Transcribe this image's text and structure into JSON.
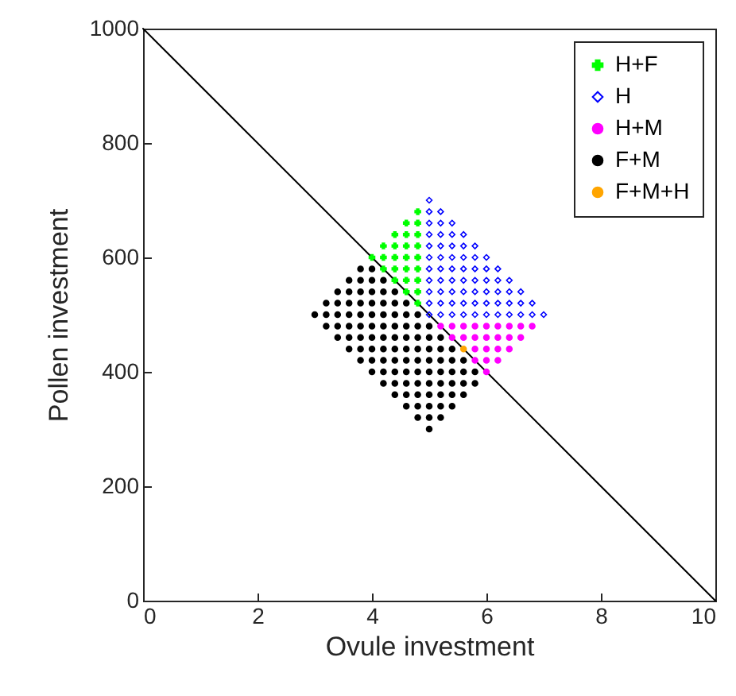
{
  "chart_data": {
    "type": "scatter",
    "xlabel": "Ovule investment",
    "ylabel": "Pollen investment",
    "xlim": [
      0,
      10
    ],
    "ylim": [
      0,
      1000
    ],
    "xticks": [
      0,
      2,
      4,
      6,
      8,
      10
    ],
    "yticks": [
      0,
      200,
      400,
      600,
      800,
      1000
    ],
    "grid": false,
    "legend": "top right",
    "series": [
      {
        "type": "line",
        "color": "#000000",
        "line_style": "solid",
        "x": [
          0,
          10
        ],
        "values": [
          1000,
          0
        ]
      },
      {
        "name": "H+F",
        "color": "#00ff00",
        "marker": "cross",
        "x": [
          4.8,
          4.8,
          4.8,
          4.8,
          4.8,
          4.8,
          4.8,
          4.8,
          4.8,
          4.6,
          4.6,
          4.6,
          4.6,
          4.6,
          4.6,
          4.6,
          4.4,
          4.4,
          4.4,
          4.4,
          4.4,
          4.2,
          4.2,
          4.2,
          4
        ],
        "values": [
          520,
          540,
          560,
          580,
          600,
          620,
          640,
          660,
          680,
          540,
          560,
          580,
          600,
          620,
          640,
          660,
          560,
          580,
          600,
          620,
          640,
          580,
          600,
          620,
          600
        ]
      },
      {
        "name": "H",
        "color": "#0000ff",
        "marker": "diamond",
        "x": [
          5,
          5,
          5,
          5,
          5,
          5,
          5,
          5,
          5,
          5,
          5,
          5.2,
          5.2,
          5.2,
          5.2,
          5.2,
          5.2,
          5.2,
          5.2,
          5.2,
          5.2,
          5.4,
          5.4,
          5.4,
          5.4,
          5.4,
          5.4,
          5.4,
          5.4,
          5.4,
          5.6,
          5.6,
          5.6,
          5.6,
          5.6,
          5.6,
          5.6,
          5.6,
          5.8,
          5.8,
          5.8,
          5.8,
          5.8,
          5.8,
          5.8,
          6,
          6,
          6,
          6,
          6,
          6,
          6.2,
          6.2,
          6.2,
          6.2,
          6.2,
          6.4,
          6.4,
          6.4,
          6.4,
          6.6,
          6.6,
          6.6,
          6.8,
          6.8,
          7
        ],
        "values": [
          500,
          520,
          540,
          560,
          580,
          600,
          620,
          640,
          660,
          680,
          700,
          500,
          520,
          540,
          560,
          580,
          600,
          620,
          640,
          660,
          680,
          500,
          520,
          540,
          560,
          580,
          600,
          620,
          640,
          660,
          500,
          520,
          540,
          560,
          580,
          600,
          620,
          640,
          500,
          520,
          540,
          560,
          580,
          600,
          620,
          500,
          520,
          540,
          560,
          580,
          600,
          500,
          520,
          540,
          560,
          580,
          500,
          520,
          540,
          560,
          500,
          520,
          540,
          500,
          520,
          500
        ]
      },
      {
        "name": "H+M",
        "color": "#ff00ff",
        "marker": "circle",
        "x": [
          5.2,
          5.4,
          5.6,
          5.8,
          6,
          6.2,
          6.4,
          6.6,
          6.8,
          5.4,
          5.6,
          5.8,
          6,
          6.2,
          6.4,
          6.6,
          5.8,
          6,
          6.2,
          6.4,
          5.8,
          6,
          6.2,
          6
        ],
        "values": [
          480,
          480,
          480,
          480,
          480,
          480,
          480,
          480,
          480,
          460,
          460,
          460,
          460,
          460,
          460,
          460,
          440,
          440,
          440,
          440,
          420,
          420,
          420,
          400
        ]
      },
      {
        "name": "F+M",
        "color": "#000000",
        "marker": "circle",
        "x": [
          3.8,
          4,
          3.6,
          3.8,
          4,
          4.2,
          3.4,
          3.6,
          3.8,
          4,
          4.2,
          4.4,
          3.2,
          3.4,
          3.6,
          3.8,
          4,
          4.2,
          4.4,
          4.6,
          3,
          3.2,
          3.4,
          3.6,
          3.8,
          4,
          4.2,
          4.4,
          4.6,
          4.8,
          3.2,
          3.4,
          3.6,
          3.8,
          4,
          4.2,
          4.4,
          4.6,
          4.8,
          5,
          3.4,
          3.6,
          3.8,
          4,
          4.2,
          4.4,
          4.6,
          4.8,
          5,
          5.2,
          3.6,
          3.8,
          4,
          4.2,
          4.4,
          4.6,
          4.8,
          5,
          5.2,
          5.4,
          3.8,
          4,
          4.2,
          4.4,
          4.6,
          4.8,
          5,
          5.2,
          5.4,
          5.6,
          4,
          4.2,
          4.4,
          4.6,
          4.8,
          5,
          5.2,
          5.4,
          5.6,
          5.8,
          4.2,
          4.4,
          4.6,
          4.8,
          5,
          5.2,
          5.4,
          5.6,
          5.8,
          4.4,
          4.6,
          4.8,
          5,
          5.2,
          5.4,
          5.6,
          4.6,
          4.8,
          5,
          5.2,
          5.4,
          4.8,
          5,
          5.2,
          5
        ],
        "values": [
          580,
          580,
          560,
          560,
          560,
          560,
          540,
          540,
          540,
          540,
          540,
          540,
          520,
          520,
          520,
          520,
          520,
          520,
          520,
          520,
          500,
          500,
          500,
          500,
          500,
          500,
          500,
          500,
          500,
          500,
          480,
          480,
          480,
          480,
          480,
          480,
          480,
          480,
          480,
          480,
          460,
          460,
          460,
          460,
          460,
          460,
          460,
          460,
          460,
          460,
          440,
          440,
          440,
          440,
          440,
          440,
          440,
          440,
          440,
          440,
          420,
          420,
          420,
          420,
          420,
          420,
          420,
          420,
          420,
          420,
          400,
          400,
          400,
          400,
          400,
          400,
          400,
          400,
          400,
          400,
          380,
          380,
          380,
          380,
          380,
          380,
          380,
          380,
          380,
          360,
          360,
          360,
          360,
          360,
          360,
          360,
          340,
          340,
          340,
          340,
          340,
          320,
          320,
          320,
          300
        ]
      },
      {
        "name": "F+M+H",
        "color": "#ffa500",
        "marker": "circle",
        "x": [
          5.6
        ],
        "values": [
          440
        ]
      }
    ]
  }
}
